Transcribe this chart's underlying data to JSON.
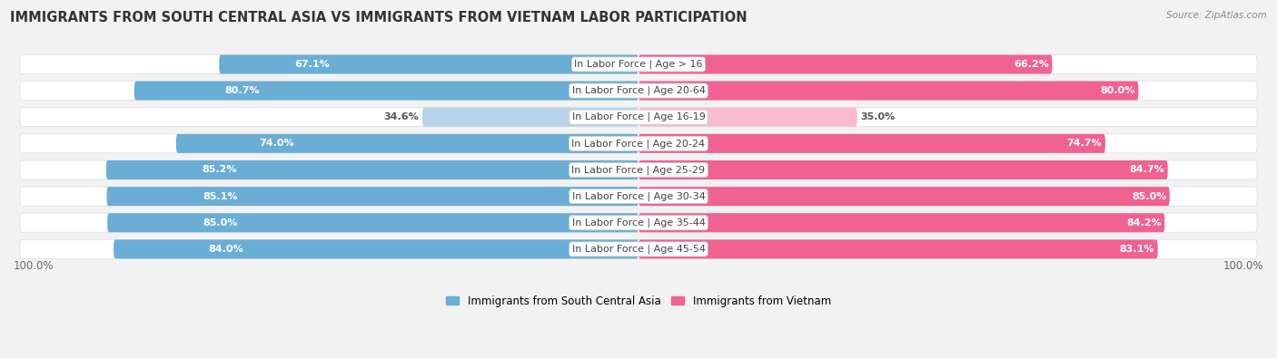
{
  "title": "IMMIGRANTS FROM SOUTH CENTRAL ASIA VS IMMIGRANTS FROM VIETNAM LABOR PARTICIPATION",
  "source": "Source: ZipAtlas.com",
  "categories": [
    "In Labor Force | Age > 16",
    "In Labor Force | Age 20-64",
    "In Labor Force | Age 16-19",
    "In Labor Force | Age 20-24",
    "In Labor Force | Age 25-29",
    "In Labor Force | Age 30-34",
    "In Labor Force | Age 35-44",
    "In Labor Force | Age 45-54"
  ],
  "left_values": [
    67.1,
    80.7,
    34.6,
    74.0,
    85.2,
    85.1,
    85.0,
    84.0
  ],
  "right_values": [
    66.2,
    80.0,
    35.0,
    74.7,
    84.7,
    85.0,
    84.2,
    83.1
  ],
  "left_color_full": "#6aaed6",
  "right_color_full": "#f06292",
  "left_color_light": "#b8d4e8",
  "right_color_light": "#f8bbd0",
  "legend_left": "Immigrants from South Central Asia",
  "legend_right": "Immigrants from Vietnam",
  "max_value": 100.0,
  "bg_color": "#f2f2f2",
  "row_bg_color": "#ffffff",
  "title_fontsize": 10.5,
  "label_fontsize": 8,
  "value_fontsize": 8,
  "threshold": 50
}
